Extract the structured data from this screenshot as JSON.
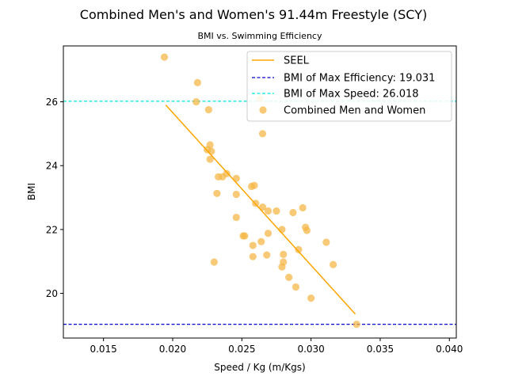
{
  "chart_data": {
    "type": "scatter",
    "title": "Combined Men's and Women's 91.44m Freestyle (SCY)",
    "subtitle": "BMI vs. Swimming Efficiency",
    "xlabel": "Speed / Kg (m/Kgs)",
    "ylabel": "BMI",
    "xlim": [
      0.0121,
      0.0405
    ],
    "ylim": [
      18.6,
      27.75
    ],
    "xticks": [
      0.015,
      0.02,
      0.025,
      0.03,
      0.035,
      0.04
    ],
    "xtick_labels": [
      "0.015",
      "0.020",
      "0.025",
      "0.030",
      "0.035",
      "0.040"
    ],
    "yticks": [
      20,
      22,
      24,
      26
    ],
    "ytick_labels": [
      "20",
      "22",
      "24",
      "26"
    ],
    "grid": false,
    "legend_position": "top-right",
    "series": [
      {
        "name": "Combined Men and Women",
        "kind": "scatter",
        "color": "#f5b642",
        "points": [
          [
            0.0194,
            27.4
          ],
          [
            0.0218,
            26.6
          ],
          [
            0.0217,
            26.0
          ],
          [
            0.0226,
            25.75
          ],
          [
            0.0263,
            26.1
          ],
          [
            0.0265,
            25.0
          ],
          [
            0.0227,
            24.65
          ],
          [
            0.0225,
            24.5
          ],
          [
            0.0228,
            24.45
          ],
          [
            0.0227,
            24.2
          ],
          [
            0.0239,
            23.75
          ],
          [
            0.0233,
            23.65
          ],
          [
            0.0236,
            23.65
          ],
          [
            0.0246,
            23.6
          ],
          [
            0.0257,
            23.35
          ],
          [
            0.0259,
            23.38
          ],
          [
            0.0246,
            23.1
          ],
          [
            0.0232,
            23.13
          ],
          [
            0.026,
            22.82
          ],
          [
            0.0265,
            22.7
          ],
          [
            0.0269,
            22.58
          ],
          [
            0.0275,
            22.58
          ],
          [
            0.0287,
            22.53
          ],
          [
            0.0294,
            22.68
          ],
          [
            0.0246,
            22.38
          ],
          [
            0.0296,
            22.07
          ],
          [
            0.0297,
            21.97
          ],
          [
            0.0279,
            22.0
          ],
          [
            0.0269,
            21.88
          ],
          [
            0.0251,
            21.8
          ],
          [
            0.0252,
            21.8
          ],
          [
            0.0264,
            21.62
          ],
          [
            0.0258,
            21.5
          ],
          [
            0.0291,
            21.37
          ],
          [
            0.0311,
            21.6
          ],
          [
            0.028,
            21.22
          ],
          [
            0.0268,
            21.2
          ],
          [
            0.0258,
            21.15
          ],
          [
            0.023,
            20.98
          ],
          [
            0.028,
            20.98
          ],
          [
            0.0279,
            20.83
          ],
          [
            0.0316,
            20.9
          ],
          [
            0.0284,
            20.5
          ],
          [
            0.0289,
            20.2
          ],
          [
            0.03,
            19.85
          ],
          [
            0.0333,
            19.03
          ]
        ]
      }
    ],
    "fit_line": {
      "name": "SEEL",
      "color": "#ffa500",
      "x0": 0.0195,
      "y0": 25.9,
      "x1": 0.0332,
      "y1": 19.35
    },
    "reference_lines": [
      {
        "name": "BMI of Max Efficiency: 19.031",
        "value": 19.031,
        "color": "#0000cd"
      },
      {
        "name": "BMI of Max Speed: 26.018",
        "value": 26.018,
        "color": "#00e5e5"
      }
    ],
    "legend_entries": [
      "SEEL",
      "BMI of Max Efficiency: 19.031",
      "BMI of Max Speed: 26.018",
      "Combined Men and Women"
    ]
  }
}
